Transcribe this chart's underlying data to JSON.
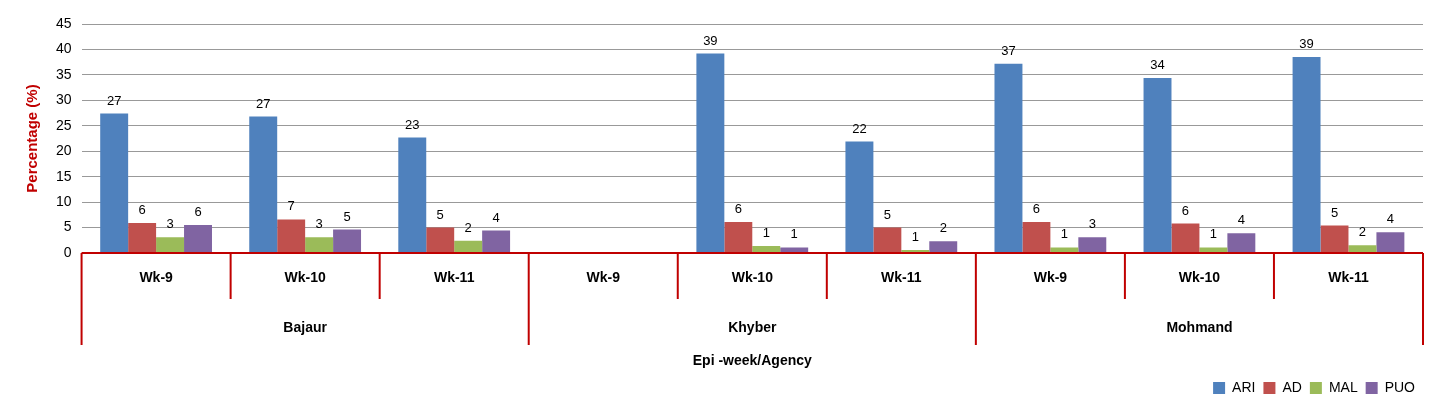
{
  "chart_data": {
    "type": "bar",
    "ylabel": "Percentage (%)",
    "xlabel": "Epi -week/Agency",
    "categories": [
      "Wk-9",
      "Wk-10",
      "Wk-11",
      "Wk-9",
      "Wk-10",
      "Wk-11",
      "Wk-9",
      "Wk-10",
      "Wk-11"
    ],
    "series": [
      {
        "name": "ARI",
        "color": "#4f81bd",
        "values": [
          27.4,
          26.8,
          22.7,
          null,
          39.2,
          21.9,
          37.2,
          34.4,
          38.5
        ],
        "value_labels": [
          "27",
          "27",
          "23",
          null,
          "39",
          "22",
          "37",
          "34",
          "39"
        ]
      },
      {
        "name": "AD",
        "color": "#c0504d",
        "values": [
          5.9,
          6.6,
          5.0,
          null,
          6.1,
          5.0,
          6.1,
          5.8,
          5.4
        ],
        "value_labels": [
          "6",
          "7",
          "5",
          null,
          "6",
          "5",
          "6",
          "6",
          "5"
        ]
      },
      {
        "name": "MAL",
        "color": "#9bbb59",
        "values": [
          3.1,
          3.1,
          2.4,
          null,
          1.4,
          0.6,
          1.1,
          1.1,
          1.5
        ],
        "value_labels": [
          "3",
          "3",
          "2",
          null,
          "1",
          "1",
          "1",
          "1",
          "2"
        ]
      },
      {
        "name": "PUO",
        "color": "#8064a2",
        "values": [
          5.5,
          4.6,
          4.4,
          null,
          1.1,
          2.3,
          3.1,
          3.9,
          4.1
        ],
        "value_labels": [
          "6",
          "5",
          "4",
          null,
          "1",
          "2",
          "3",
          "4",
          "4"
        ]
      }
    ],
    "annotations": [
      "Bajaur",
      "Khyber",
      "Mohmand"
    ],
    "ylim": [
      0,
      45
    ],
    "yticks": [
      0,
      5,
      10,
      15,
      20,
      25,
      30,
      35,
      40,
      45
    ],
    "grid": "y",
    "legend": "bottom"
  }
}
